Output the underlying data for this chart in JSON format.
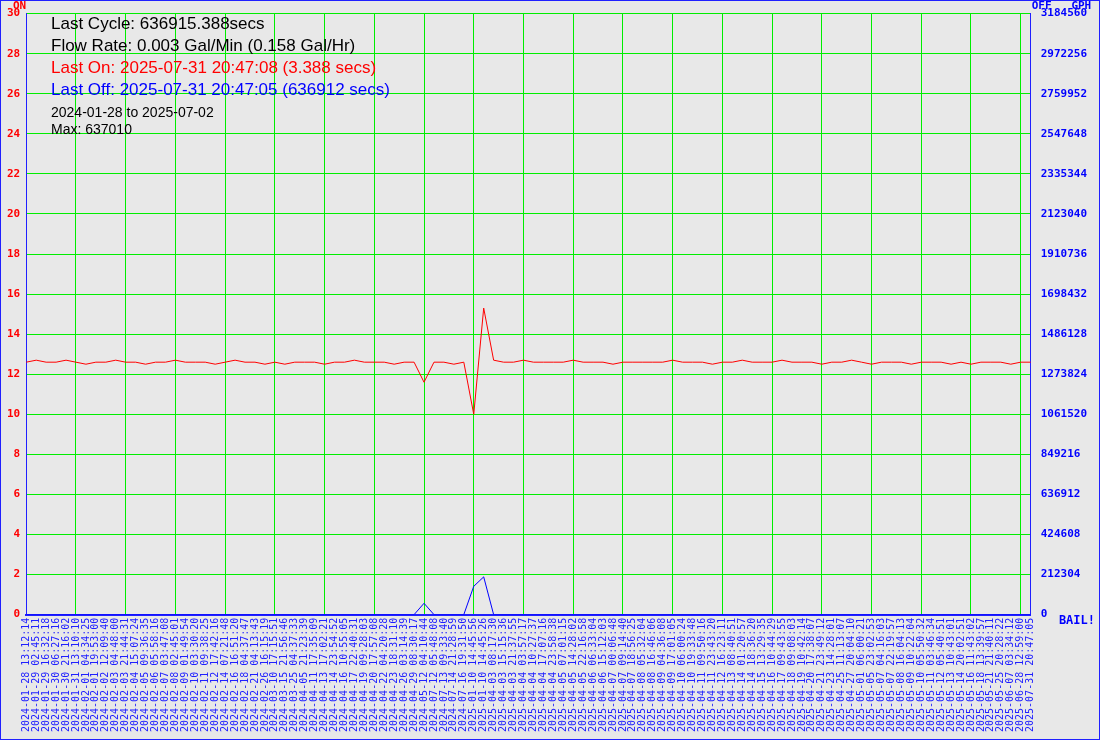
{
  "chart_data": {
    "type": "line",
    "ylabel": "ON",
    "y2label": "OFF   GPH",
    "grid": true,
    "legend": false,
    "marker": "none",
    "ylim": [
      0,
      30
    ],
    "yticks": [
      0,
      2,
      4,
      6,
      8,
      10,
      12,
      14,
      16,
      18,
      20,
      22,
      24,
      26,
      28,
      30
    ],
    "y2lim": [
      0,
      3184560
    ],
    "y2ticks": [
      0,
      212304,
      424608,
      636912,
      849216,
      1061520,
      1273824,
      1486128,
      1698432,
      1910736,
      2123040,
      2335344,
      2547648,
      2759952,
      2972256,
      3184560
    ],
    "annotations": [
      "Last Cycle: 636915.388secs",
      "Flow Rate: 0.003 Gal/Min (0.158 Gal/Hr)",
      "Last On: 2025-07-31 20:47:08 (3.388 secs)",
      "Last Off: 2025-07-31 20:47:05 (636912 secs)",
      "2024-01-28 to 2025-07-02",
      "Max: 637010",
      "BAIL!"
    ],
    "categories": [
      "2024-01-28 13:12:14",
      "2024-01-29 02:45:11",
      "2024-01-29 16:32:18",
      "2024-01-30 06:27:16",
      "2024-01-30 21:16:02",
      "2024-01-31 13:10:10",
      "2024-02-01 04:34:25",
      "2024-02-01 19:53:00",
      "2024-02-02 12:09:40",
      "2024-02-03 04:48:00",
      "2024-02-03 21:44:31",
      "2024-02-04 15:07:24",
      "2024-02-05 09:36:35",
      "2024-02-06 05:58:16",
      "2024-02-07 03:47:08",
      "2024-02-08 02:45:01",
      "2024-02-09 01:49:54",
      "2024-02-10 03:30:20",
      "2024-02-11 09:38:25",
      "2024-02-12 17:42:16",
      "2024-02-14 07:21:48",
      "2024-02-16 16:51:20",
      "2024-02-18 04:37:47",
      "2024-02-21 04:13:43",
      "2024-02-26 16:15:19",
      "2024-03-10 17:15:51",
      "2024-03-15 21:56:46",
      "2024-03-25 04:37:33",
      "2024-04-05 21:23:39",
      "2024-04-11 17:35:09",
      "2024-04-13 17:02:21",
      "2024-04-14 23:54:52",
      "2024-04-16 10:55:05",
      "2024-04-17 22:40:31",
      "2024-04-19 09:28:03",
      "2024-04-20 17:57:08",
      "2024-04-22 04:20:28",
      "2024-04-23 18:31:10",
      "2024-04-26 03:14:39",
      "2024-04-29 08:30:17",
      "2024-05-12 04:10:44",
      "2024-07-12 05:48:08",
      "2024-07-13 09:33:40",
      "2024-07-14 21:28:59",
      "2024-07-16 19:31:50",
      "2025-01-10 14:45:56",
      "2025-01-10 14:45:26",
      "2025-04-03 08:17:30",
      "2025-04-03 15:15:36",
      "2025-04-03 21:37:55",
      "2025-04-04 03:57:17",
      "2025-04-04 10:27:37",
      "2025-04-04 17:07:16",
      "2025-04-04 23:58:38",
      "2025-04-05 07:01:15",
      "2025-04-05 14:28:02",
      "2025-04-05 22:16:58",
      "2025-04-06 06:33:04",
      "2025-04-06 15:12:03",
      "2025-04-07 00:06:48",
      "2025-04-07 09:14:40",
      "2025-04-07 18:56:25",
      "2025-04-08 05:32:04",
      "2025-04-08 16:46:06",
      "2025-04-09 04:36:08",
      "2025-04-09 17:01:05",
      "2025-04-10 06:00:24",
      "2025-04-10 19:33:48",
      "2025-04-11 09:50:16",
      "2025-04-11 23:43:20",
      "2025-04-12 16:23:11",
      "2025-04-13 08:40:51",
      "2025-04-14 01:20:57",
      "2025-04-14 18:36:20",
      "2025-04-15 13:29:35",
      "2025-04-16 10:44:29",
      "2025-04-17 09:43:55",
      "2025-04-18 09:08:03",
      "2025-04-19 10:42:14",
      "2025-04-20 17:38:07",
      "2025-04-21 23:49:12",
      "2025-04-23 14:28:01",
      "2025-04-25 11:13:07",
      "2025-04-27 20:04:10",
      "2025-05-01 06:00:21",
      "2025-05-05 23:02:53",
      "2025-05-07 04:16:03",
      "2025-05-07 22:19:57",
      "2025-05-08 16:04:13",
      "2025-05-09 10:22:04",
      "2025-05-10 05:50:32",
      "2025-05-11 03:46:34",
      "2025-05-12 05:40:51",
      "2025-05-13 10:43:01",
      "2025-05-14 20:02:51",
      "2025-05-16 11:43:02",
      "2025-05-18 13:39:57",
      "2025-05-21 21:40:11",
      "2025-05-25 20:28:22",
      "2025-06-07 03:34:12",
      "2025-06-28 12:59:00",
      "2025-07-31 20:47:05"
    ],
    "series": [
      {
        "color": "#ff0000",
        "values": [
          12.6,
          12.7,
          12.6,
          12.6,
          12.7,
          12.6,
          12.5,
          12.6,
          12.6,
          12.7,
          12.6,
          12.6,
          12.5,
          12.6,
          12.6,
          12.7,
          12.6,
          12.6,
          12.6,
          12.5,
          12.6,
          12.7,
          12.6,
          12.6,
          12.5,
          12.6,
          12.5,
          12.6,
          12.6,
          12.6,
          12.5,
          12.6,
          12.6,
          12.7,
          12.6,
          12.6,
          12.6,
          12.5,
          12.6,
          12.6,
          11.6,
          12.6,
          12.6,
          12.5,
          12.6,
          10,
          15.3,
          12.7,
          12.6,
          12.6,
          12.7,
          12.6,
          12.6,
          12.6,
          12.6,
          12.7,
          12.6,
          12.6,
          12.6,
          12.5,
          12.6,
          12.6,
          12.6,
          12.6,
          12.6,
          12.7,
          12.6,
          12.6,
          12.6,
          12.5,
          12.6,
          12.6,
          12.7,
          12.6,
          12.6,
          12.6,
          12.7,
          12.6,
          12.6,
          12.6,
          12.5,
          12.6,
          12.6,
          12.7,
          12.6,
          12.5,
          12.6,
          12.6,
          12.6,
          12.5,
          12.6,
          12.6,
          12.6,
          12.5,
          12.6,
          12.5,
          12.6,
          12.6,
          12.6,
          12.5,
          12.6,
          12.6
        ]
      },
      {
        "color": "#0000ff",
        "axis": "y2",
        "values": [
          0,
          0,
          0,
          0,
          0,
          0,
          0,
          0,
          0,
          0,
          0,
          0,
          0,
          0,
          0,
          0,
          0,
          0,
          0,
          0,
          0,
          0,
          0,
          0,
          0,
          0,
          0,
          0,
          0,
          0,
          0,
          0,
          0,
          0,
          0,
          0,
          0,
          0,
          0,
          0,
          60000,
          0,
          0,
          0,
          0,
          150000,
          200000,
          0,
          0,
          0,
          0,
          0,
          0,
          0,
          0,
          0,
          0,
          0,
          0,
          0,
          0,
          0,
          0,
          0,
          0,
          0,
          0,
          0,
          0,
          0,
          0,
          0,
          0,
          0,
          0,
          0,
          0,
          0,
          0,
          0,
          0,
          0,
          0,
          0,
          0,
          0,
          0,
          0,
          0,
          0,
          0,
          0,
          0,
          0,
          0,
          0,
          0,
          0,
          0,
          0,
          0,
          0
        ]
      }
    ]
  }
}
